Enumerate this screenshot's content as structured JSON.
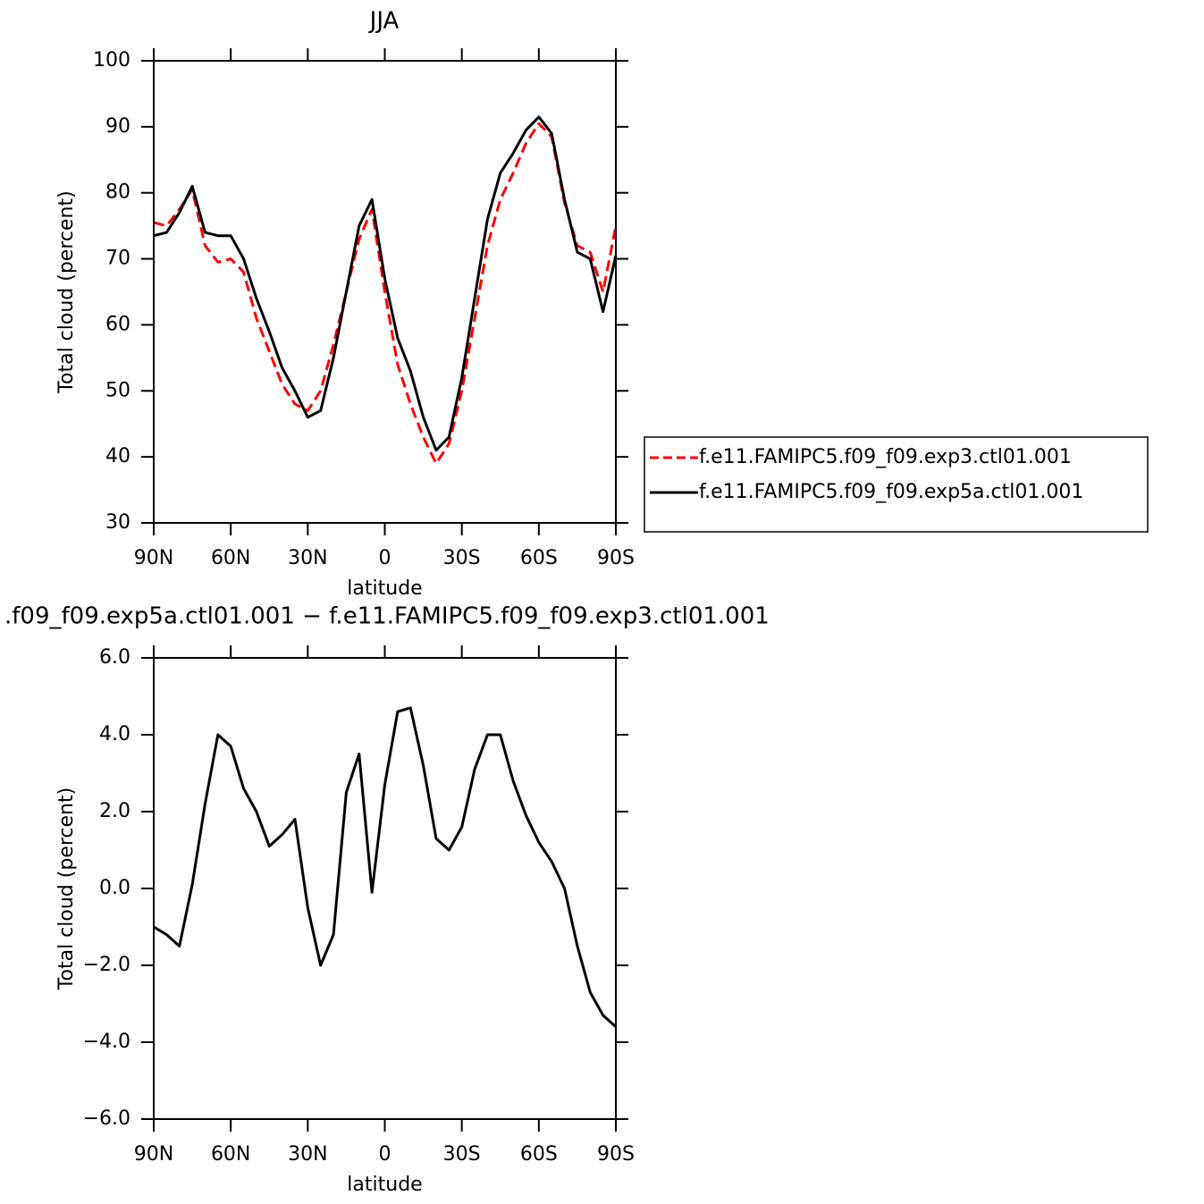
{
  "chart_data": [
    {
      "type": "line",
      "title": "JJA",
      "xlabel": "latitude",
      "ylabel": "Total cloud (percent)",
      "x": [
        90,
        85,
        80,
        75,
        70,
        65,
        60,
        55,
        50,
        45,
        40,
        35,
        30,
        25,
        20,
        15,
        10,
        5,
        0,
        -5,
        -10,
        -15,
        -20,
        -25,
        -30,
        -35,
        -40,
        -45,
        -50,
        -55,
        -60,
        -65,
        -70,
        -75,
        -80,
        -85,
        -90
      ],
      "series": [
        {
          "name": "f.e11.FAMIPC5.f09_f09.exp3.ctl01.001",
          "color": "#ff0000",
          "dash": "dashed",
          "values": [
            75.5,
            75,
            77.5,
            80.5,
            72,
            69.5,
            70,
            68,
            61,
            56,
            51,
            48,
            47,
            50,
            57,
            65,
            73,
            77.5,
            65,
            54,
            48,
            43,
            39,
            42,
            50,
            61,
            72,
            79,
            83,
            87.5,
            90.5,
            88.5,
            78.5,
            72,
            71,
            65,
            75
          ]
        },
        {
          "name": "f.e11.FAMIPC5.f09_f09.exp5a.ctl01.001",
          "color": "#000000",
          "dash": "solid",
          "values": [
            73.5,
            74,
            77,
            81,
            74,
            73.5,
            73.5,
            70,
            64,
            59,
            53.5,
            50,
            46,
            47,
            55,
            65,
            75,
            79,
            67,
            58,
            53,
            46,
            41,
            43,
            52,
            64,
            76,
            83,
            86,
            89.5,
            91.5,
            89,
            79,
            71,
            70,
            62,
            70.5
          ]
        }
      ],
      "xlim": [
        90,
        -90
      ],
      "xticks": [
        {
          "value": 90,
          "label": "90N"
        },
        {
          "value": 60,
          "label": "60N"
        },
        {
          "value": 30,
          "label": "30N"
        },
        0,
        {
          "value": -30,
          "label": "30S"
        },
        {
          "value": -60,
          "label": "60S"
        },
        {
          "value": -90,
          "label": "90S"
        }
      ],
      "ylim": [
        30,
        100
      ],
      "yticks": [
        30,
        40,
        50,
        60,
        70,
        80,
        90,
        100
      ],
      "legend": "right"
    },
    {
      "type": "line",
      "title": ".f09_f09.exp5a.ctl01.001 − f.e11.FAMIPC5.f09_f09.exp3.ctl01.001",
      "xlabel": "latitude",
      "ylabel": "Total cloud (percent)",
      "x": [
        90,
        85,
        80,
        75,
        70,
        65,
        60,
        55,
        50,
        45,
        40,
        35,
        30,
        25,
        20,
        15,
        10,
        5,
        0,
        -5,
        -10,
        -15,
        -20,
        -25,
        -30,
        -35,
        -40,
        -45,
        -50,
        -55,
        -60,
        -65,
        -70,
        -75,
        -80,
        -85,
        -90
      ],
      "series": [
        {
          "color": "#000000",
          "dash": "solid",
          "values": [
            -1,
            -1.2,
            -1.5,
            0.1,
            2.2,
            4.0,
            3.7,
            2.6,
            2.0,
            1.1,
            1.4,
            1.8,
            -0.5,
            -2.0,
            -1.2,
            2.5,
            3.5,
            -0.1,
            2.7,
            4.6,
            4.7,
            3.2,
            1.3,
            1.0,
            1.6,
            3.1,
            4.0,
            4.0,
            2.8,
            1.9,
            1.2,
            0.7,
            0.0,
            -1.5,
            -2.7,
            -3.3,
            -3.6
          ]
        }
      ],
      "xlim": [
        90,
        -90
      ],
      "xticks": [
        {
          "value": 90,
          "label": "90N"
        },
        {
          "value": 60,
          "label": "60N"
        },
        {
          "value": 30,
          "label": "30N"
        },
        0,
        {
          "value": -30,
          "label": "30S"
        },
        {
          "value": -60,
          "label": "60S"
        },
        {
          "value": -90,
          "label": "90S"
        }
      ],
      "ylim": [
        -6,
        6
      ],
      "yticks": [
        {
          "value": -6,
          "label": "−6.0"
        },
        {
          "value": -4,
          "label": "−4.0"
        },
        {
          "value": -2,
          "label": "−2.0"
        },
        {
          "value": 0,
          "label": "0.0"
        },
        {
          "value": 2,
          "label": "2.0"
        },
        {
          "value": 4,
          "label": "4.0"
        },
        {
          "value": 6,
          "label": "6.0"
        }
      ]
    }
  ]
}
